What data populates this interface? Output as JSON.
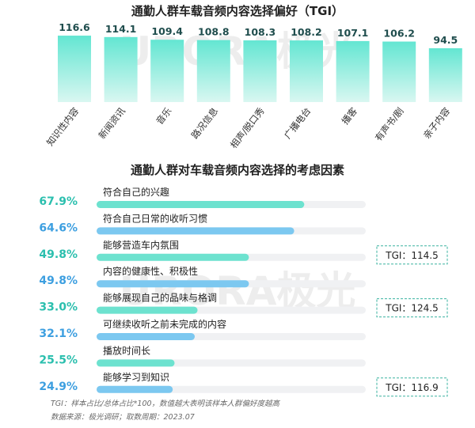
{
  "watermark": "URORA极光",
  "notes": {
    "line1": "TGI：样本占比/总体占比*100，数值越大表明该样本人群偏好度越高",
    "line2": "数据来源：极光调研；取数周期：2023.07"
  },
  "colors": {
    "bar_teal_top": "#63e6d2",
    "bar_teal_bottom": "#d9f7f1",
    "track": "#f0f1f3",
    "fill_teal": "#6de2cf",
    "fill_blue": "#7cc8f0",
    "pct_teal": "#2bbfae",
    "pct_blue": "#3d9fe0",
    "tgi_border": "#3bb3a0"
  },
  "chart_data": [
    {
      "type": "bar",
      "title": "通勤人群车载音频内容选择偏好（TGI）",
      "categories": [
        "知识性内容",
        "新闻资讯",
        "音乐",
        "路况信息",
        "相声/脱口秀",
        "广播电台",
        "播客",
        "有声书/剧",
        "亲子内容"
      ],
      "values": [
        116.6,
        114.1,
        109.4,
        108.8,
        108.3,
        108.2,
        107.1,
        106.2,
        94.5
      ],
      "value_labels": [
        "116.6",
        "114.1",
        "109.4",
        "108.8",
        "108.3",
        "108.2",
        "107.1",
        "106.2",
        "94.5"
      ],
      "ylim": [
        0,
        120
      ]
    },
    {
      "type": "bar",
      "orientation": "horizontal",
      "title": "通勤人群对车载音频内容选择的考虑因素",
      "categories": [
        "符合自己的兴趣",
        "符合自己日常的收听习惯",
        "能够营造车内氛围",
        "内容的健康性、积极性",
        "能够展现自己的品味与格调",
        "可继续收听之前未完成的内容",
        "播放时间长",
        "能够学习到知识"
      ],
      "values": [
        67.9,
        64.6,
        49.8,
        49.8,
        33.0,
        32.1,
        25.5,
        24.9
      ],
      "value_labels": [
        "67.9%",
        "64.6%",
        "49.8%",
        "49.8%",
        "33.0%",
        "32.1%",
        "25.5%",
        "24.9%"
      ],
      "xlim": [
        0,
        100
      ],
      "annotations": [
        {
          "row": 2,
          "text": "TGI：114.5"
        },
        {
          "row": 4,
          "text": "TGI：124.5"
        },
        {
          "row": 7,
          "text": "TGI：116.9"
        }
      ]
    }
  ]
}
